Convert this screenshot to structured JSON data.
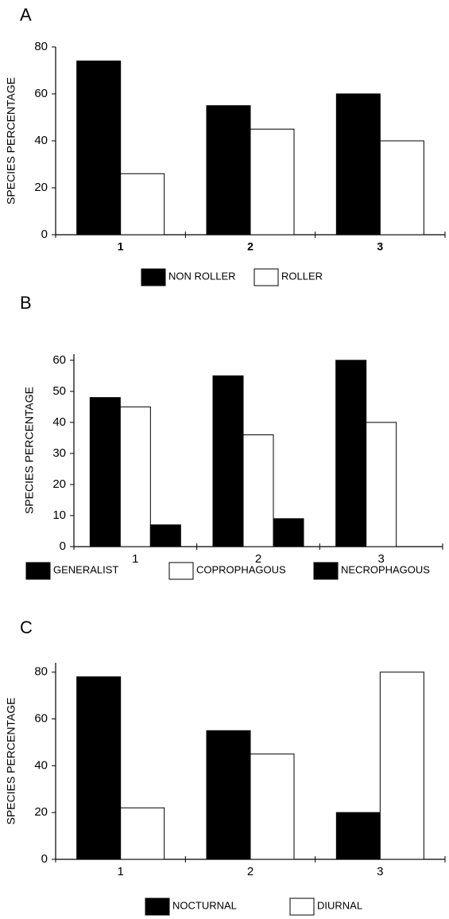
{
  "chart_data": [
    {
      "type": "bar",
      "panel_label": "A",
      "y_label": "SPECIES PERCENTAGE",
      "categories": [
        "1",
        "2",
        "3"
      ],
      "series": [
        {
          "name": "NON ROLLER",
          "color": "#000000",
          "values": [
            74,
            55,
            60
          ]
        },
        {
          "name": "ROLLER",
          "color": "#ffffff",
          "values": [
            26,
            45,
            40
          ]
        }
      ],
      "ylim": [
        0,
        80
      ],
      "yticks": [
        0,
        20,
        40,
        60,
        80
      ]
    },
    {
      "type": "bar",
      "panel_label": "B",
      "y_label": "SPECIES PERCENTAGE",
      "categories": [
        "1",
        "2",
        "3"
      ],
      "series": [
        {
          "name": "GENERALIST",
          "color": "#000000",
          "values": [
            48,
            55,
            60
          ]
        },
        {
          "name": "COPROPHAGOUS",
          "color": "#ffffff",
          "values": [
            45,
            36,
            40
          ]
        },
        {
          "name": "NECROPHAGOUS",
          "color": "#000000",
          "values": [
            7,
            9,
            0
          ]
        }
      ],
      "ylim": [
        0,
        62
      ],
      "yticks": [
        0,
        10,
        20,
        30,
        40,
        50,
        60
      ]
    },
    {
      "type": "bar",
      "panel_label": "C",
      "y_label": "SPECIES PERCENTAGE",
      "categories": [
        "1",
        "2",
        "3"
      ],
      "series": [
        {
          "name": "NOCTURNAL",
          "color": "#000000",
          "values": [
            78,
            55,
            20
          ]
        },
        {
          "name": "DIURNAL",
          "color": "#ffffff",
          "values": [
            22,
            45,
            80
          ]
        }
      ],
      "ylim": [
        0,
        84
      ],
      "yticks": [
        0,
        20,
        40,
        60,
        80
      ]
    }
  ]
}
